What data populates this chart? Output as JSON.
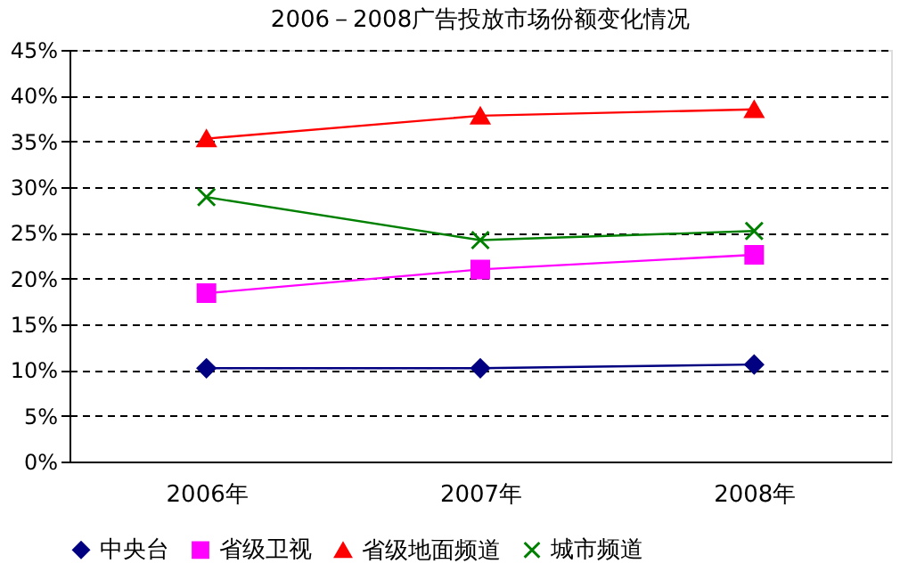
{
  "chart_data": {
    "type": "line",
    "title": "2006－2008广告投放市场份额变化情况",
    "categories": [
      "2006年",
      "2007年",
      "2008年"
    ],
    "series": [
      {
        "name": "中央台",
        "color": "#000080",
        "marker": "diamond",
        "values": [
          10.2,
          10.2,
          10.6
        ]
      },
      {
        "name": "省级卫视",
        "color": "#ff00ff",
        "marker": "square",
        "values": [
          18.4,
          21.0,
          22.6
        ]
      },
      {
        "name": "省级地面频道",
        "color": "#ff0000",
        "marker": "triangle",
        "values": [
          35.3,
          37.8,
          38.5
        ]
      },
      {
        "name": "城市频道",
        "color": "#008000",
        "marker": "cross",
        "values": [
          28.9,
          24.2,
          25.2
        ]
      }
    ],
    "ylim": [
      0,
      45
    ],
    "yticks": [
      {
        "value": 0,
        "label": "0%"
      },
      {
        "value": 5,
        "label": "5%"
      },
      {
        "value": 10,
        "label": "10%"
      },
      {
        "value": 15,
        "label": "15%"
      },
      {
        "value": 20,
        "label": "20%"
      },
      {
        "value": 25,
        "label": "25%"
      },
      {
        "value": 30,
        "label": "30%"
      },
      {
        "value": 35,
        "label": "35%"
      },
      {
        "value": 40,
        "label": "40%"
      },
      {
        "value": 45,
        "label": "45%"
      }
    ],
    "grid": "y",
    "legend": "bottom",
    "line_style": "solid"
  }
}
